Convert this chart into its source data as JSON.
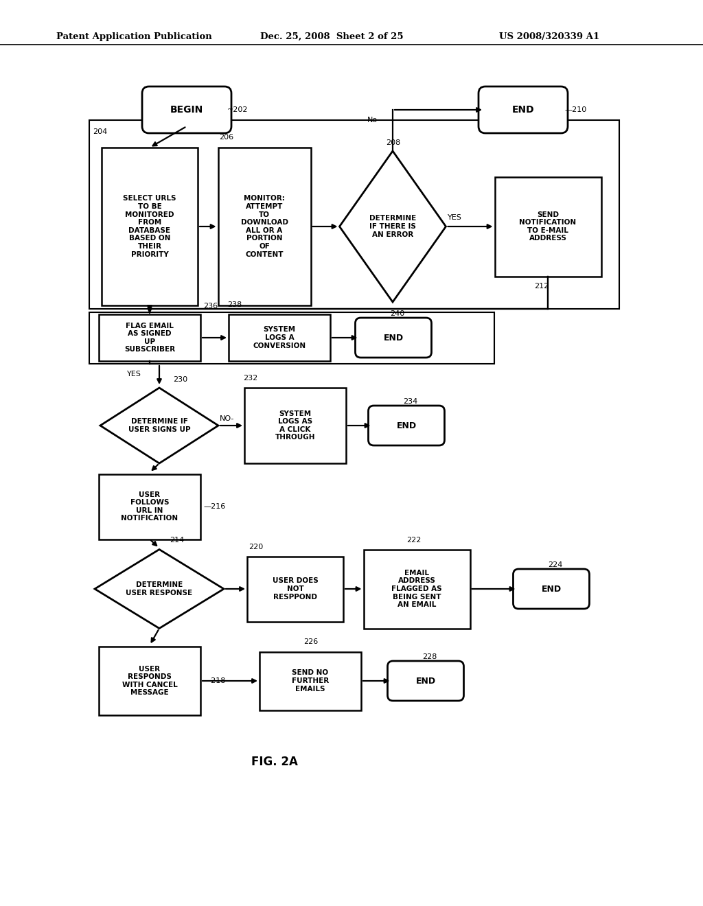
{
  "title_left": "Patent Application Publication",
  "title_mid": "Dec. 25, 2008  Sheet 2 of 25",
  "title_right": "US 2008/320339 A1",
  "fig_label": "FIG. 2A",
  "background": "#ffffff"
}
